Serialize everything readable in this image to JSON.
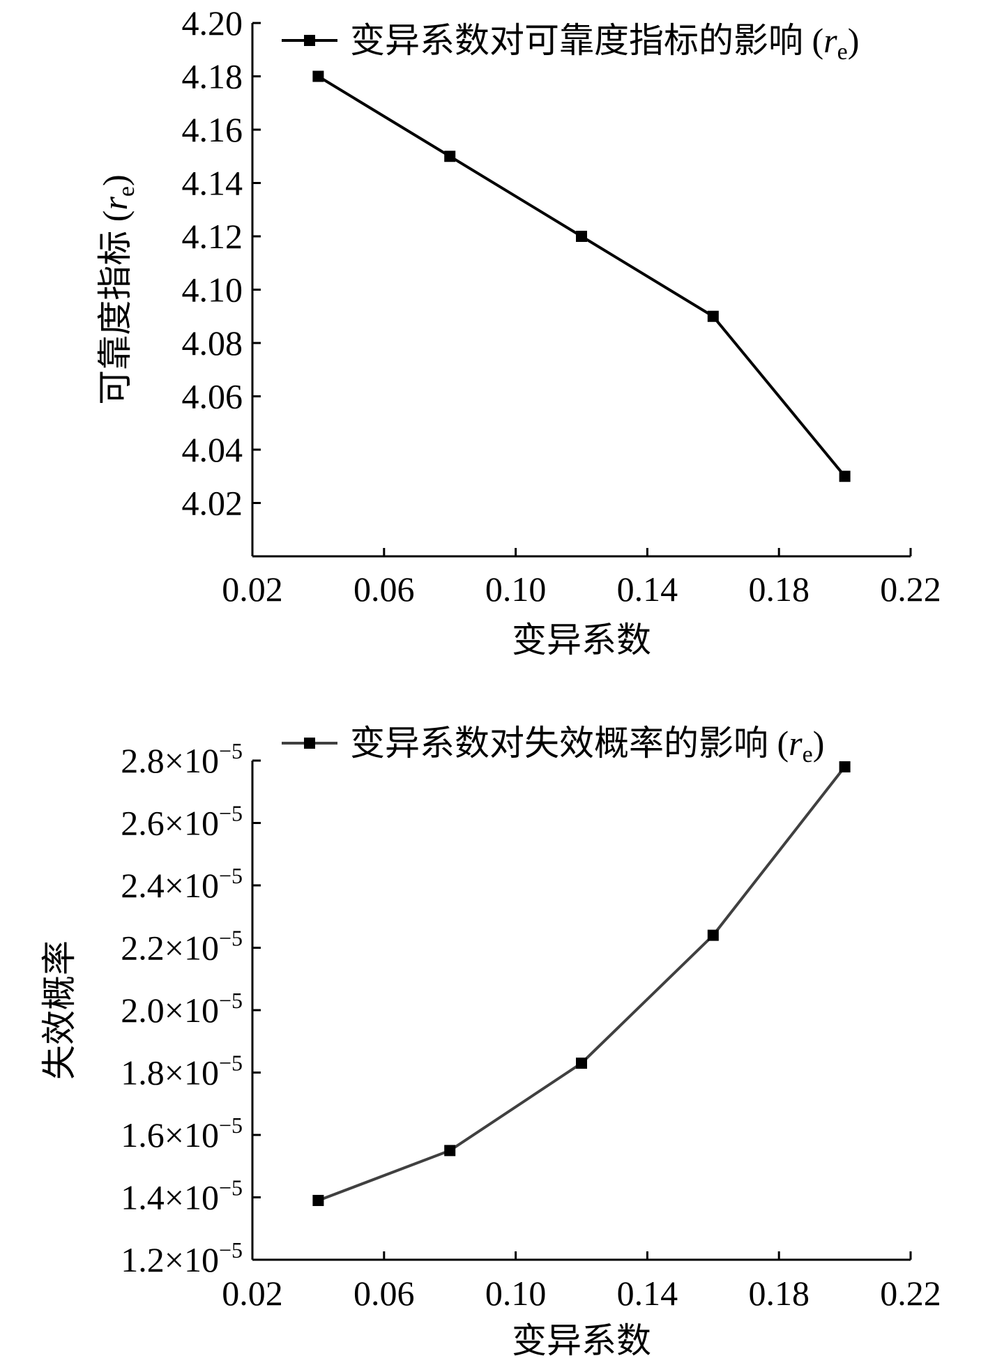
{
  "chart_data": [
    {
      "type": "line",
      "title": "",
      "xlabel": "变异系数",
      "ylabel": "可靠度指标 (r",
      "ylabel_sub": "e",
      "ylabel_close": ")",
      "xlim": [
        0.02,
        0.22
      ],
      "ylim": [
        4.0,
        4.2
      ],
      "x_ticks": [
        0.02,
        0.06,
        0.1,
        0.14,
        0.18,
        0.22
      ],
      "x_tick_labels": [
        "0.02",
        "0.06",
        "0.10",
        "0.14",
        "0.18",
        "0.22"
      ],
      "y_ticks": [
        4.02,
        4.04,
        4.06,
        4.08,
        4.1,
        4.12,
        4.14,
        4.16,
        4.18,
        4.2
      ],
      "y_tick_labels": [
        "4.02",
        "4.04",
        "4.06",
        "4.08",
        "4.10",
        "4.12",
        "4.14",
        "4.16",
        "4.18",
        "4.20"
      ],
      "grid": false,
      "legend_position": "top-right",
      "series": [
        {
          "name": "变异系数对可靠度指标的影响 (r",
          "name_sub": "e",
          "name_close": ")",
          "color": "#000000",
          "x": [
            0.04,
            0.08,
            0.12,
            0.16,
            0.2
          ],
          "values": [
            4.18,
            4.15,
            4.12,
            4.09,
            4.03
          ]
        }
      ]
    },
    {
      "type": "line",
      "title": "",
      "xlabel": "变异系数",
      "ylabel": "失效概率",
      "xlim": [
        0.02,
        0.22
      ],
      "ylim": [
        1.2e-05,
        2.8e-05
      ],
      "x_ticks": [
        0.02,
        0.06,
        0.1,
        0.14,
        0.18,
        0.22
      ],
      "x_tick_labels": [
        "0.02",
        "0.06",
        "0.10",
        "0.14",
        "0.18",
        "0.22"
      ],
      "y_ticks": [
        1.2e-05,
        1.4e-05,
        1.6e-05,
        1.8e-05,
        2e-05,
        2.2e-05,
        2.4e-05,
        2.6e-05,
        2.8e-05
      ],
      "y_tick_mantissas": [
        "1.2",
        "1.4",
        "1.6",
        "1.8",
        "2.0",
        "2.2",
        "2.4",
        "2.6",
        "2.8"
      ],
      "y_tick_times": "×10",
      "y_tick_exponent": "−5",
      "grid": false,
      "legend_position": "top-right",
      "series": [
        {
          "name": "变异系数对失效概率的影响 (r",
          "name_sub": "e",
          "name_close": ")",
          "color": "#404040",
          "x": [
            0.04,
            0.08,
            0.12,
            0.16,
            0.2
          ],
          "values": [
            1.39e-05,
            1.55e-05,
            1.83e-05,
            2.24e-05,
            2.78e-05
          ]
        }
      ]
    }
  ]
}
